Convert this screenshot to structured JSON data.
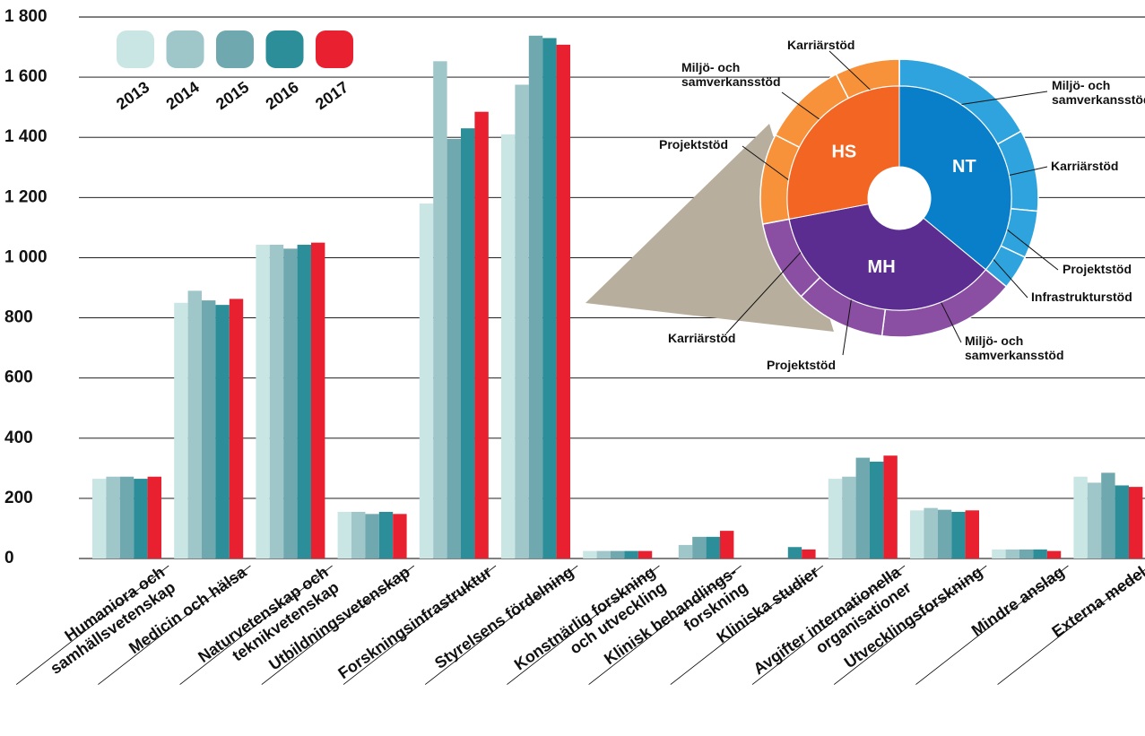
{
  "chart_data": [
    {
      "type": "bar",
      "categories": [
        "Humaniora och\nsamhällsvetenskap",
        "Medicin och hälsa",
        "Naturvetenskap och\nteknikvetenskap",
        "Utbildningsvetenskap",
        "Forskningsinfrastruktur",
        "Styrelsens fördelning",
        "Konstnärlig forskning\noch utveckling",
        "Klinisk behandlings-\nforskning",
        "Kliniska studier",
        "Avgifter internationella\norganisationer",
        "Utvecklingsforskning",
        "Mindre anslag",
        "Externa medel"
      ],
      "series": [
        {
          "name": "2013",
          "color": "#c9e6e4",
          "values": [
            265,
            850,
            1043,
            155,
            1180,
            1410,
            25,
            null,
            null,
            265,
            160,
            30,
            272
          ]
        },
        {
          "name": "2014",
          "color": "#9fc6c9",
          "values": [
            272,
            890,
            1043,
            155,
            1653,
            1575,
            25,
            45,
            null,
            272,
            168,
            30,
            252
          ]
        },
        {
          "name": "2015",
          "color": "#6fa8ae",
          "values": [
            272,
            858,
            1030,
            148,
            1395,
            1738,
            25,
            72,
            null,
            335,
            162,
            30,
            285
          ]
        },
        {
          "name": "2016",
          "color": "#2b8e98",
          "values": [
            265,
            843,
            1043,
            155,
            1430,
            1730,
            25,
            72,
            38,
            322,
            155,
            30,
            243
          ]
        },
        {
          "name": "2017",
          "color": "#e8202f",
          "values": [
            272,
            863,
            1050,
            148,
            1485,
            1708,
            25,
            92,
            30,
            342,
            160,
            25,
            238
          ]
        }
      ],
      "ylim": [
        0,
        1800
      ],
      "yticks": [
        0,
        200,
        400,
        600,
        800,
        {
          "value": 1000,
          "label": "1 000"
        },
        {
          "value": 1200,
          "label": "1 200"
        },
        {
          "value": 1400,
          "label": "1 400"
        },
        {
          "value": 1600,
          "label": "1 600"
        },
        {
          "value": 1800,
          "label": "1 800"
        }
      ],
      "grid": true
    },
    {
      "type": "sunburst",
      "groups": [
        {
          "name": "NT",
          "color": "#0a7fc9",
          "ring_color": "#2ea3de",
          "children": [
            {
              "name": "Miljö- och\nsamverkansstöd",
              "value": 17
            },
            {
              "name": "Karriärstöd",
              "value": 9.5
            },
            {
              "name": "Projektstöd",
              "value": 5.5
            },
            {
              "name": "Infrastrukturstöd",
              "value": 4
            }
          ]
        },
        {
          "name": "MH",
          "color": "#5c2d91",
          "ring_color": "#8a4fa3",
          "children": [
            {
              "name": "Miljö- och\nsamverkansstöd",
              "value": 16
            },
            {
              "name": "Projektstöd",
              "value": 10.5
            },
            {
              "name": "Karriärstöd",
              "value": 9.5
            }
          ]
        },
        {
          "name": "HS",
          "color": "#f26522",
          "ring_color": "#f7923a",
          "children": [
            {
              "name": "Projektstöd",
              "value": 10.5
            },
            {
              "name": "Miljö- och\nsamverkansstöd",
              "value": 10
            },
            {
              "name": "Karriärstöd",
              "value": 7.5
            }
          ]
        }
      ]
    }
  ]
}
